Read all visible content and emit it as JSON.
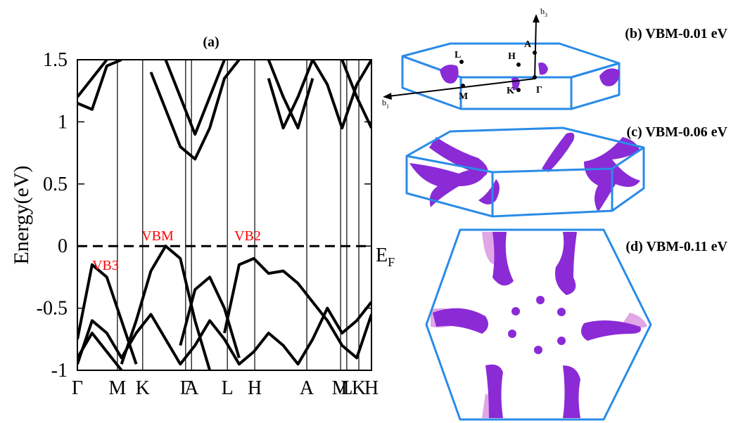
{
  "chart_data": {
    "type": "line",
    "title": "(a)",
    "y_label": "Energy(eV)",
    "xlim": [
      0,
      1
    ],
    "ylim": [
      -1,
      1.5
    ],
    "yticks": [
      -1,
      -0.5,
      0,
      0.5,
      1,
      1.5
    ],
    "xticks": [
      {
        "value": 0,
        "label": "Γ"
      },
      {
        "value": 0.136,
        "label": "M"
      },
      {
        "value": 0.222,
        "label": "K"
      },
      {
        "value": 0.368,
        "label": "Γ"
      },
      {
        "value": 0.388,
        "label": "A"
      },
      {
        "value": 0.51,
        "label": "L"
      },
      {
        "value": 0.603,
        "label": "H"
      },
      {
        "value": 0.78,
        "label": "A"
      },
      {
        "value": 0.895,
        "label": "M"
      },
      {
        "value": 0.916,
        "label": "L"
      },
      {
        "value": 0.957,
        "label": "K"
      },
      {
        "value": 1,
        "label": "H"
      }
    ],
    "grid": true,
    "fermi_level": 0,
    "fermi_label": {
      "main": "E",
      "sub": "F"
    },
    "annotations": [
      "VBM",
      "VB2",
      "VB3"
    ],
    "annotation_color": "#ff0000",
    "x": [
      0,
      0.05,
      0.1,
      0.15,
      0.2,
      0.25,
      0.3,
      0.35,
      0.4,
      0.45,
      0.5,
      0.55,
      0.6,
      0.65,
      0.7,
      0.75,
      0.8,
      0.85,
      0.9,
      0.95,
      1
    ],
    "series": [
      {
        "color": "#000000",
        "values": [
          -0.75,
          -0.15,
          -0.25,
          -0.6,
          -0.95,
          null,
          null,
          null,
          null,
          null,
          null,
          null,
          null,
          null,
          null,
          null,
          null,
          null,
          null,
          null,
          null
        ]
      },
      {
        "color": "#000000",
        "values": [
          null,
          null,
          null,
          -0.95,
          -0.6,
          -0.2,
          0,
          -0.1,
          -0.6,
          -1.0,
          null,
          null,
          null,
          null,
          null,
          null,
          null,
          null,
          null,
          null,
          null
        ]
      },
      {
        "color": "#000000",
        "values": [
          null,
          null,
          null,
          null,
          null,
          null,
          null,
          null,
          null,
          null,
          -0.7,
          -0.15,
          -0.1,
          -0.22,
          -0.2,
          -0.3,
          -0.45,
          -0.6,
          -0.8,
          -0.9,
          -0.55
        ]
      },
      {
        "color": "#000000",
        "values": [
          -0.9,
          -0.7,
          -0.85,
          -1.0,
          null,
          null,
          null,
          -0.8,
          -0.35,
          -0.25,
          -0.5,
          -0.9,
          null,
          null,
          null,
          null,
          null,
          null,
          null,
          null,
          null
        ]
      },
      {
        "color": "#000000",
        "values": [
          1.2,
          1.35,
          1.5,
          null,
          null,
          1.4,
          1.1,
          0.8,
          0.7,
          0.95,
          1.35,
          1.5,
          null,
          1.35,
          0.95,
          1.2,
          1.5,
          1.3,
          0.95,
          1.3,
          1.5
        ]
      },
      {
        "color": "#000000",
        "values": [
          1.15,
          1.1,
          1.45,
          1.5,
          null,
          null,
          1.5,
          1.2,
          0.9,
          1.2,
          1.5,
          null,
          null,
          1.5,
          1.2,
          0.95,
          1.35,
          null,
          1.5,
          1.2,
          0.95
        ]
      },
      {
        "color": "#000000",
        "values": [
          -0.95,
          -0.6,
          -0.7,
          -0.9,
          -0.7,
          -0.55,
          -0.75,
          -0.95,
          -0.8,
          -0.6,
          -0.75,
          -0.95,
          -0.85,
          -0.7,
          -0.8,
          -0.95,
          -0.75,
          -0.5,
          -0.7,
          -0.6,
          -0.45
        ]
      }
    ]
  },
  "fermi_surfaces": {
    "titles": [
      "(b) VBM-0.01 eV",
      "(c) VBM-0.06 eV",
      "(d) VBM-0.11 eV"
    ],
    "axes": {
      "b1": {
        "main": "b",
        "sub": "1"
      },
      "b3": {
        "main": "b",
        "sub": "3"
      }
    },
    "points": [
      "L",
      "H",
      "A",
      "M",
      "K",
      "Γ"
    ]
  }
}
